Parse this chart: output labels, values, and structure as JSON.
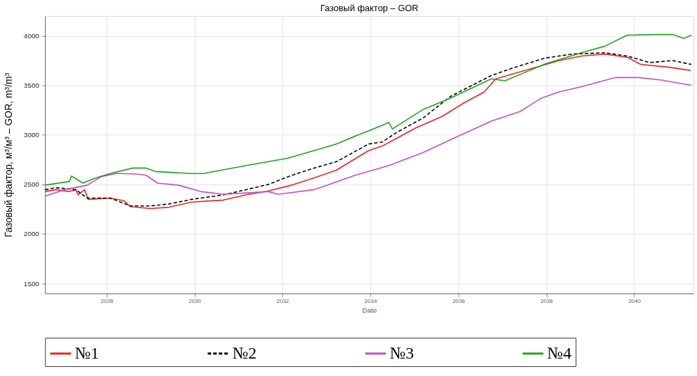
{
  "chart_data": {
    "type": "line",
    "title": "Газовый фактор – GOR",
    "xlabel": "Date",
    "ylabel": "Газовый фактор, м³/м³ – GOR, m³/m³",
    "xlim": [
      2026.6,
      2041.35
    ],
    "xticks": [
      2028,
      2030,
      2032,
      2034,
      2036,
      2038,
      2040
    ],
    "ylim": [
      1400,
      4200
    ],
    "yticks": [
      1500,
      2000,
      2500,
      3000,
      3500,
      4000
    ],
    "grid": true,
    "legend": "bottom",
    "marker": "none",
    "series": [
      {
        "name": "№1",
        "color": "#f02020",
        "line_style": "solid",
        "x": [
          2026.6,
          2026.84,
          2027.15,
          2027.3,
          2027.35,
          2027.5,
          2027.58,
          2028.08,
          2028.39,
          2028.54,
          2029.0,
          2029.42,
          2029.93,
          2030.66,
          2031.17,
          2031.68,
          2032.21,
          2032.72,
          2033.23,
          2033.96,
          2034.27,
          2034.58,
          2035.04,
          2035.62,
          2036.13,
          2036.59,
          2036.85,
          2037.78,
          2038.29,
          2038.8,
          2039.33,
          2039.84,
          2040.15,
          2040.77,
          2041.28
        ],
        "values": [
          2428,
          2447,
          2428,
          2447,
          2395,
          2447,
          2349,
          2362,
          2336,
          2276,
          2257,
          2270,
          2322,
          2342,
          2395,
          2434,
          2493,
          2566,
          2645,
          2842,
          2888,
          2961,
          3072,
          3184,
          3323,
          3434,
          3566,
          3684,
          3750,
          3796,
          3816,
          3783,
          3711,
          3684,
          3651
        ]
      },
      {
        "name": "№2",
        "color": "#000000",
        "line_style": "dashed",
        "x": [
          2026.6,
          2026.84,
          2027.3,
          2027.56,
          2028.08,
          2028.54,
          2029.0,
          2029.42,
          2029.93,
          2030.66,
          2031.17,
          2031.68,
          2032.21,
          2032.72,
          2033.23,
          2033.96,
          2034.27,
          2034.58,
          2035.2,
          2035.82,
          2036.75,
          2037.26,
          2037.98,
          2038.6,
          2039.33,
          2039.84,
          2040.35,
          2040.88,
          2041.3
        ],
        "values": [
          2447,
          2467,
          2447,
          2362,
          2362,
          2283,
          2283,
          2303,
          2349,
          2395,
          2447,
          2500,
          2592,
          2665,
          2730,
          2908,
          2928,
          3020,
          3171,
          3388,
          3599,
          3678,
          3776,
          3816,
          3829,
          3796,
          3730,
          3750,
          3711
        ]
      },
      {
        "name": "№3",
        "color": "#c050c0",
        "line_style": "solid",
        "x": [
          2026.6,
          2027.04,
          2027.56,
          2027.88,
          2028.23,
          2028.7,
          2028.9,
          2029.16,
          2029.63,
          2030.14,
          2030.66,
          2031.17,
          2031.68,
          2031.9,
          2032.72,
          2033.65,
          2034.42,
          2035.2,
          2035.93,
          2036.75,
          2037.41,
          2037.88,
          2038.29,
          2038.8,
          2039.58,
          2040.1,
          2040.62,
          2041.3
        ],
        "values": [
          2382,
          2447,
          2493,
          2579,
          2612,
          2605,
          2592,
          2513,
          2493,
          2428,
          2401,
          2414,
          2428,
          2401,
          2447,
          2592,
          2691,
          2822,
          2974,
          3138,
          3237,
          3369,
          3434,
          3487,
          3579,
          3579,
          3553,
          3500
        ]
      },
      {
        "name": "№4",
        "color": "#20a020",
        "line_style": "solid",
        "x": [
          2026.6,
          2027.15,
          2027.2,
          2027.46,
          2027.72,
          2028.08,
          2028.59,
          2028.9,
          2029.11,
          2029.93,
          2030.2,
          2031.17,
          2032.1,
          2032.83,
          2033.23,
          2033.65,
          2033.96,
          2034.42,
          2034.5,
          2035.2,
          2035.82,
          2036.75,
          2037.06,
          2037.98,
          2038.8,
          2039.33,
          2039.84,
          2040.51,
          2040.88,
          2041.13,
          2041.3
        ],
        "values": [
          2493,
          2530,
          2585,
          2513,
          2560,
          2610,
          2665,
          2665,
          2630,
          2610,
          2610,
          2690,
          2763,
          2855,
          2908,
          2987,
          3040,
          3125,
          3060,
          3257,
          3370,
          3566,
          3546,
          3717,
          3829,
          3895,
          4007,
          4013,
          4013,
          3974,
          4007
        ]
      }
    ]
  }
}
